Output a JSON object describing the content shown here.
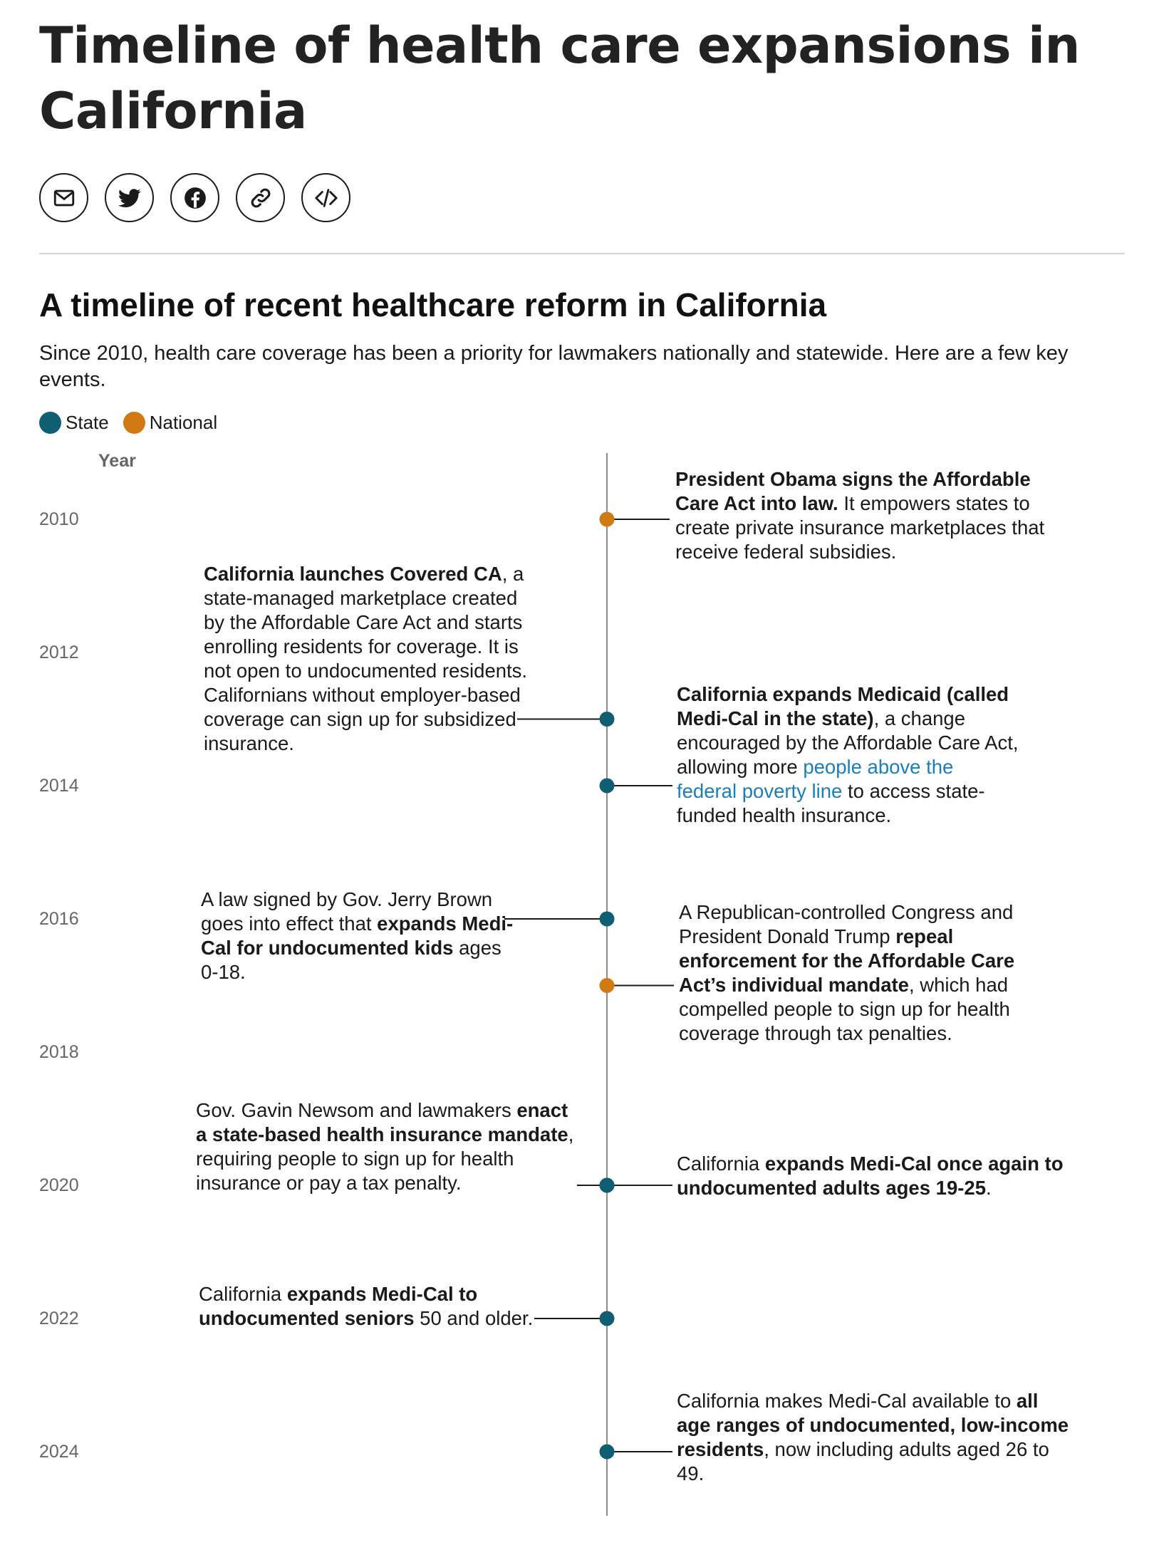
{
  "page": {
    "title": "Timeline of health care expansions in California"
  },
  "share": [
    {
      "name": "email-share-button",
      "icon": "mail-icon"
    },
    {
      "name": "twitter-share-button",
      "icon": "twitter-icon"
    },
    {
      "name": "facebook-share-button",
      "icon": "facebook-icon"
    },
    {
      "name": "copy-link-button",
      "icon": "link-icon"
    },
    {
      "name": "embed-button",
      "icon": "code-icon"
    }
  ],
  "chart": {
    "title": "A timeline of recent healthcare reform in California",
    "subtitle": "Since 2010, health care coverage has been a priority for lawmakers nationally and statewide. Here are a few key events.",
    "legend": [
      {
        "label": "State",
        "color": "#0f5e72"
      },
      {
        "label": "National",
        "color": "#d17a14"
      }
    ],
    "year_header": "Year"
  },
  "chart_data": {
    "type": "timeline",
    "axis": {
      "label": "Year",
      "min": 2009.4,
      "max": 2025.0,
      "ticks": [
        2010,
        2012,
        2014,
        2016,
        2018,
        2020,
        2022,
        2024
      ]
    },
    "colors": {
      "State": "#0f5e72",
      "National": "#d17a14"
    },
    "events": [
      {
        "year": 2010.0,
        "category": "National",
        "side": "right",
        "text": [
          {
            "b": "President Obama signs the Affordable Care Act into law."
          },
          {
            "t": " It empowers states to create private insurance marketplaces that receive federal subsidies."
          }
        ]
      },
      {
        "year": 2013.0,
        "category": "State",
        "side": "left",
        "text": [
          {
            "b": "California launches Covered CA"
          },
          {
            "t": ", a state-managed marketplace created by the Affordable Care Act and starts enrolling residents for coverage. It is not open to undocumented residents. Californians without employer-based coverage can sign up for subsidized insurance."
          }
        ]
      },
      {
        "year": 2014.0,
        "category": "State",
        "side": "right",
        "text": [
          {
            "b": "California expands Medicaid (called Medi-Cal in the state)"
          },
          {
            "t": ", a change encouraged by the Affordable Care Act, allowing more "
          },
          {
            "l": "people above the federal poverty line"
          },
          {
            "t": " to access state-funded health insurance."
          }
        ]
      },
      {
        "year": 2016.0,
        "category": "State",
        "side": "left",
        "text": [
          {
            "t": "A law signed by Gov. Jerry Brown goes into effect that "
          },
          {
            "b": "expands Medi-Cal for undocumented kids"
          },
          {
            "t": " ages 0-18."
          }
        ]
      },
      {
        "year": 2017.0,
        "category": "National",
        "side": "right",
        "text": [
          {
            "t": "A Republican-controlled Congress and President Donald Trump "
          },
          {
            "b": "repeal enforcement for the Affordable Care Act’s individual mandate"
          },
          {
            "t": ", which had compelled people to sign up for health coverage through tax penalties."
          }
        ]
      },
      {
        "year": 2020.0,
        "category": "State",
        "side": "left",
        "text": [
          {
            "t": "Gov. Gavin Newsom and lawmakers "
          },
          {
            "b": "enact a state-based health insurance mandate"
          },
          {
            "t": ", requiring people to sign up for health insurance or pay a tax penalty."
          }
        ]
      },
      {
        "year": 2020.0,
        "category": "State",
        "side": "right",
        "text": [
          {
            "t": "California "
          },
          {
            "b": "expands Medi-Cal once again to undocumented adults ages 19-25"
          },
          {
            "t": "."
          }
        ]
      },
      {
        "year": 2022.0,
        "category": "State",
        "side": "left",
        "text": [
          {
            "t": "California "
          },
          {
            "b": "expands Medi-Cal to undocumented seniors"
          },
          {
            "t": " 50 and older."
          }
        ]
      },
      {
        "year": 2024.0,
        "category": "State",
        "side": "right",
        "text": [
          {
            "t": "California makes Medi-Cal available to "
          },
          {
            "b": "all age ranges of undocumented, low-income residents"
          },
          {
            "t": ", now including adults aged 26 to 49."
          }
        ]
      }
    ]
  }
}
